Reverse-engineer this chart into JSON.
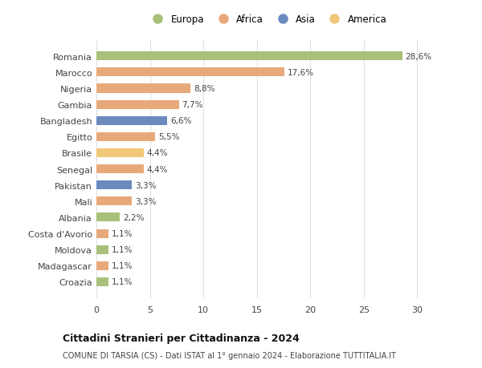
{
  "countries": [
    "Romania",
    "Marocco",
    "Nigeria",
    "Gambia",
    "Bangladesh",
    "Egitto",
    "Brasile",
    "Senegal",
    "Pakistan",
    "Mali",
    "Albania",
    "Costa d'Avorio",
    "Moldova",
    "Madagascar",
    "Croazia"
  ],
  "values": [
    28.6,
    17.6,
    8.8,
    7.7,
    6.6,
    5.5,
    4.4,
    4.4,
    3.3,
    3.3,
    2.2,
    1.1,
    1.1,
    1.1,
    1.1
  ],
  "labels": [
    "28,6%",
    "17,6%",
    "8,8%",
    "7,7%",
    "6,6%",
    "5,5%",
    "4,4%",
    "4,4%",
    "3,3%",
    "3,3%",
    "2,2%",
    "1,1%",
    "1,1%",
    "1,1%",
    "1,1%"
  ],
  "colors": [
    "#a8c07a",
    "#e8a97a",
    "#e8a97a",
    "#e8a97a",
    "#6b8bbf",
    "#e8a97a",
    "#f0c878",
    "#e8a97a",
    "#6b8bbf",
    "#e8a97a",
    "#a8c07a",
    "#e8a97a",
    "#a8c07a",
    "#e8a97a",
    "#a8c07a"
  ],
  "legend_labels": [
    "Europa",
    "Africa",
    "Asia",
    "America"
  ],
  "legend_colors": [
    "#a8c07a",
    "#e8a97a",
    "#6b8bbf",
    "#f0c878"
  ],
  "title": "Cittadini Stranieri per Cittadinanza - 2024",
  "subtitle": "COMUNE DI TARSIA (CS) - Dati ISTAT al 1° gennaio 2024 - Elaborazione TUTTITALIA.IT",
  "xlim": [
    0,
    32
  ],
  "xticks": [
    0,
    5,
    10,
    15,
    20,
    25,
    30
  ],
  "bg_color": "#ffffff",
  "grid_color": "#e0e0e0",
  "bar_height": 0.55
}
